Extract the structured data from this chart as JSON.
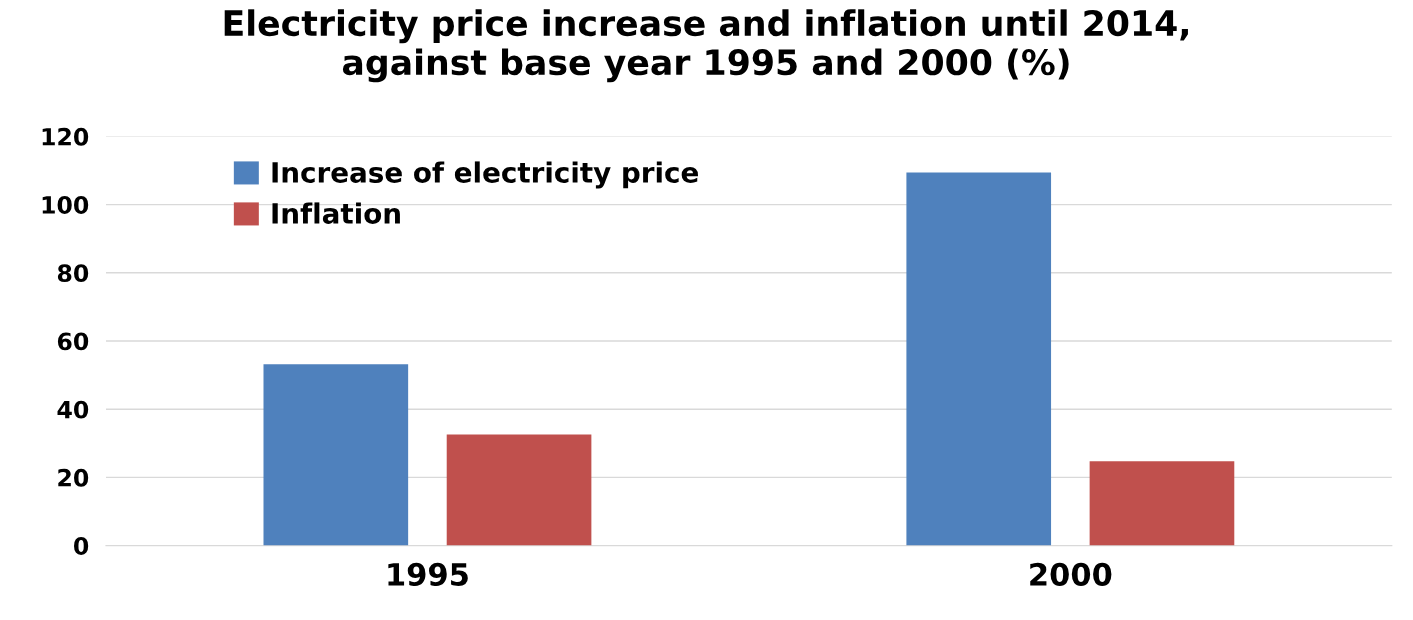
{
  "chart_data": {
    "type": "bar",
    "title": "Electricity price increase and inflation until 2014,\nagainst base year 1995 and 2000 (%)",
    "categories": [
      "1995",
      "2000"
    ],
    "series": [
      {
        "name": "Increase of electricity price",
        "color": "#4f81bd",
        "values": [
          53.2,
          109.4
        ]
      },
      {
        "name": "Inflation",
        "color": "#c0504d",
        "values": [
          32.6,
          24.7
        ]
      }
    ],
    "ylim": [
      0,
      120
    ],
    "yticks": [
      0,
      20,
      40,
      60,
      80,
      100,
      120
    ],
    "grid": "y",
    "legend": "top left"
  }
}
